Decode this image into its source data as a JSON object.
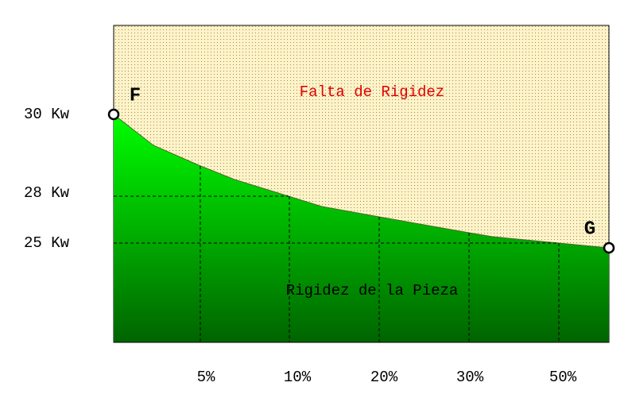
{
  "regions": {
    "upper": "Falta de Rigidez",
    "lower": "Rigidez de la Pieza"
  },
  "points": {
    "start": "F",
    "end": "G"
  },
  "y_labels": [
    "30 Kw",
    "28 Kw",
    "25 Kw"
  ],
  "x_labels": [
    "5%",
    "10%",
    "20%",
    "30%",
    "50%"
  ]
}
